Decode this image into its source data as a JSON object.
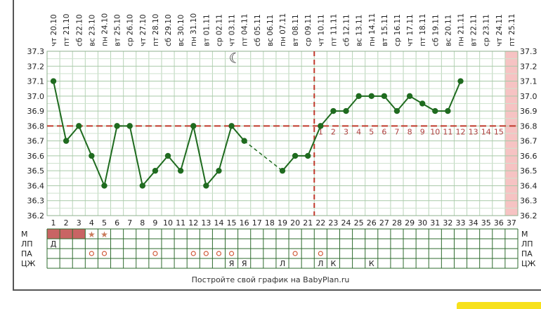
{
  "chart_data": {
    "type": "line",
    "y_ticks": [
      "37.3",
      "37.2",
      "37.1",
      "37.0",
      "36.9",
      "36.8",
      "36.7",
      "36.6",
      "36.5",
      "36.4",
      "36.3",
      "36.2"
    ],
    "ylim": [
      36.2,
      37.3
    ],
    "days": [
      "1",
      "2",
      "3",
      "4",
      "5",
      "6",
      "7",
      "8",
      "9",
      "10",
      "11",
      "12",
      "13",
      "14",
      "15",
      "16",
      "17",
      "18",
      "19",
      "20",
      "21",
      "22",
      "23",
      "24",
      "25",
      "26",
      "27",
      "28",
      "29",
      "30",
      "31",
      "32",
      "33",
      "34",
      "35",
      "36",
      "37"
    ],
    "dates": [
      {
        "dow": "чт",
        "date": "20.10"
      },
      {
        "dow": "пт",
        "date": "21.10"
      },
      {
        "dow": "сб",
        "date": "22.10"
      },
      {
        "dow": "вс",
        "date": "23.10"
      },
      {
        "dow": "пн",
        "date": "24.10"
      },
      {
        "dow": "вт",
        "date": "25.10"
      },
      {
        "dow": "ср",
        "date": "26.10"
      },
      {
        "dow": "чт",
        "date": "27.10"
      },
      {
        "dow": "пт",
        "date": "28.10"
      },
      {
        "dow": "сб",
        "date": "29.10"
      },
      {
        "dow": "вс",
        "date": "30.10"
      },
      {
        "dow": "пн",
        "date": "31.10"
      },
      {
        "dow": "вт",
        "date": "01.11"
      },
      {
        "dow": "ср",
        "date": "02.11"
      },
      {
        "dow": "чт",
        "date": "03.11"
      },
      {
        "dow": "пт",
        "date": "04.11"
      },
      {
        "dow": "сб",
        "date": "05.11"
      },
      {
        "dow": "вс",
        "date": "06.11"
      },
      {
        "dow": "пн",
        "date": "07.11"
      },
      {
        "dow": "вт",
        "date": "08.11"
      },
      {
        "dow": "ср",
        "date": "09.11"
      },
      {
        "dow": "чт",
        "date": "10.11"
      },
      {
        "dow": "пт",
        "date": "11.11"
      },
      {
        "dow": "сб",
        "date": "12.11"
      },
      {
        "dow": "вс",
        "date": "13.11"
      },
      {
        "dow": "пн",
        "date": "14.11"
      },
      {
        "dow": "вт",
        "date": "15.11"
      },
      {
        "dow": "ср",
        "date": "16.11"
      },
      {
        "dow": "чт",
        "date": "17.11"
      },
      {
        "dow": "пт",
        "date": "18.11"
      },
      {
        "dow": "сб",
        "date": "19.11"
      },
      {
        "dow": "вс",
        "date": "20.11"
      },
      {
        "dow": "пн",
        "date": "21.11"
      },
      {
        "dow": "вт",
        "date": "22.11"
      },
      {
        "dow": "ср",
        "date": "23.11"
      },
      {
        "dow": "чт",
        "date": "24.11"
      },
      {
        "dow": "пт",
        "date": "25.11"
      }
    ],
    "series": [
      {
        "values": [
          37.1,
          36.7,
          36.8,
          36.6,
          36.4,
          36.8,
          36.8,
          36.4,
          36.5,
          36.6,
          36.5,
          36.8,
          36.4,
          36.5,
          36.8,
          36.7,
          null,
          null,
          36.5,
          36.6,
          36.6,
          36.8,
          36.9,
          36.9,
          37.0,
          37.0,
          37.0,
          36.9,
          37.0,
          36.95,
          36.9,
          36.9,
          37.1,
          null,
          null,
          null,
          null
        ],
        "color": "#1f6b1f"
      }
    ],
    "skipped_segment": {
      "from_day": 16,
      "to_day": 19
    },
    "coverline": 36.8,
    "coverline_color": "#c0392b",
    "ovulation_line_day": 22,
    "post_ovulation_labels": [
      "1",
      "2",
      "3",
      "4",
      "5",
      "6",
      "7",
      "8",
      "9",
      "10",
      "11",
      "12",
      "13",
      "14",
      "15"
    ],
    "highlight_day": 37,
    "highlight_color": "#f6c3c3",
    "moon_icon_day": 15,
    "grid": true
  },
  "rows": {
    "labels": [
      "М",
      "ЛП",
      "ПА",
      "ЦЖ"
    ],
    "m_bar_days": [
      1,
      2,
      3
    ],
    "m_bar_color": "#c96464",
    "m_star_days": [
      4,
      5
    ],
    "lp_marks": [
      {
        "day": 1,
        "text": "Д"
      }
    ],
    "pa_circle_days": [
      4,
      5,
      9,
      12,
      13,
      14,
      15,
      20,
      22
    ],
    "cz_marks": [
      {
        "day": 15,
        "text": "Я"
      },
      {
        "day": 16,
        "text": "Я"
      },
      {
        "day": 19,
        "text": "Л"
      },
      {
        "day": 22,
        "text": "Л"
      },
      {
        "day": 23,
        "text": "К"
      },
      {
        "day": 26,
        "text": "К"
      }
    ]
  },
  "footer": {
    "note": "Постройте свой график на BabyPlan.ru"
  }
}
